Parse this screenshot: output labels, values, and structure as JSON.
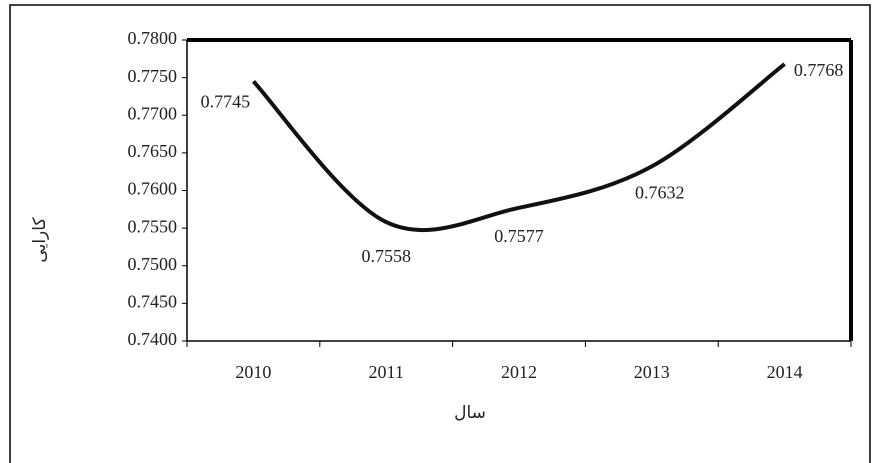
{
  "chart_data": {
    "type": "line",
    "categories": [
      "2010",
      "2011",
      "2012",
      "2013",
      "2014"
    ],
    "series": [
      {
        "name": null,
        "color": "#111111",
        "values": [
          0.7745,
          0.7558,
          0.7577,
          0.7632,
          0.7768
        ]
      }
    ],
    "ylim": [
      0.74,
      0.78
    ],
    "yticks": [
      {
        "value": 0.74,
        "label": "0.7400"
      },
      {
        "value": 0.745,
        "label": "0.7450"
      },
      {
        "value": 0.75,
        "label": "0.7500"
      },
      {
        "value": 0.755,
        "label": "0.7550"
      },
      {
        "value": 0.76,
        "label": "0.7600"
      },
      {
        "value": 0.765,
        "label": "0.7650"
      },
      {
        "value": 0.77,
        "label": "0.7700"
      },
      {
        "value": 0.775,
        "label": "0.7750"
      },
      {
        "value": 0.78,
        "label": "0.7800"
      }
    ],
    "xlabel": "سال",
    "ylabel": "کارایی",
    "grid": false
  }
}
